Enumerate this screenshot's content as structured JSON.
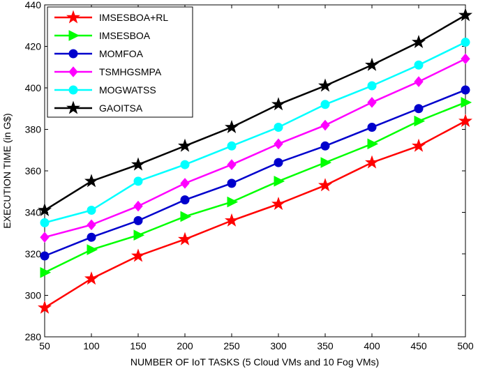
{
  "chart_data": {
    "type": "line",
    "title": "",
    "xlabel": "NUMBER OF IoT TASKS (5 Cloud VMs and 10 Fog VMs)",
    "ylabel": "EXECUTION TIME (in G$)",
    "x": [
      50,
      100,
      150,
      200,
      250,
      300,
      350,
      400,
      450,
      500
    ],
    "xlim": [
      50,
      500
    ],
    "ylim": [
      280,
      440
    ],
    "xticks": [
      "50",
      "100",
      "150",
      "200",
      "250",
      "300",
      "350",
      "400",
      "450",
      "500"
    ],
    "yticks": [
      "280",
      "300",
      "320",
      "340",
      "360",
      "380",
      "400",
      "420",
      "440"
    ],
    "grid": false,
    "legend_position": "top-left",
    "series": [
      {
        "name": "IMSESBOA+RL",
        "color": "#ff0000",
        "marker": "star",
        "values": [
          294,
          308,
          319,
          327,
          336,
          344,
          353,
          364,
          372,
          384
        ]
      },
      {
        "name": "IMSESBOA",
        "color": "#00ff00",
        "marker": "triangle-right",
        "values": [
          311,
          322,
          329,
          338,
          345,
          355,
          364,
          373,
          384,
          393
        ]
      },
      {
        "name": "MOMFOA",
        "color": "#0000cc",
        "marker": "circle",
        "values": [
          319,
          328,
          336,
          346,
          354,
          364,
          372,
          381,
          390,
          399
        ]
      },
      {
        "name": "TSMHGSMPA",
        "color": "#ff00ff",
        "marker": "diamond",
        "values": [
          328,
          334,
          343,
          354,
          363,
          373,
          382,
          393,
          403,
          414
        ]
      },
      {
        "name": "MOGWATSS",
        "color": "#00ffff",
        "marker": "circle",
        "values": [
          335,
          341,
          355,
          363,
          372,
          381,
          392,
          401,
          411,
          422
        ]
      },
      {
        "name": "GAOITSA",
        "color": "#000000",
        "marker": "star",
        "values": [
          341,
          355,
          363,
          372,
          381,
          392,
          401,
          411,
          422,
          435
        ]
      }
    ]
  }
}
